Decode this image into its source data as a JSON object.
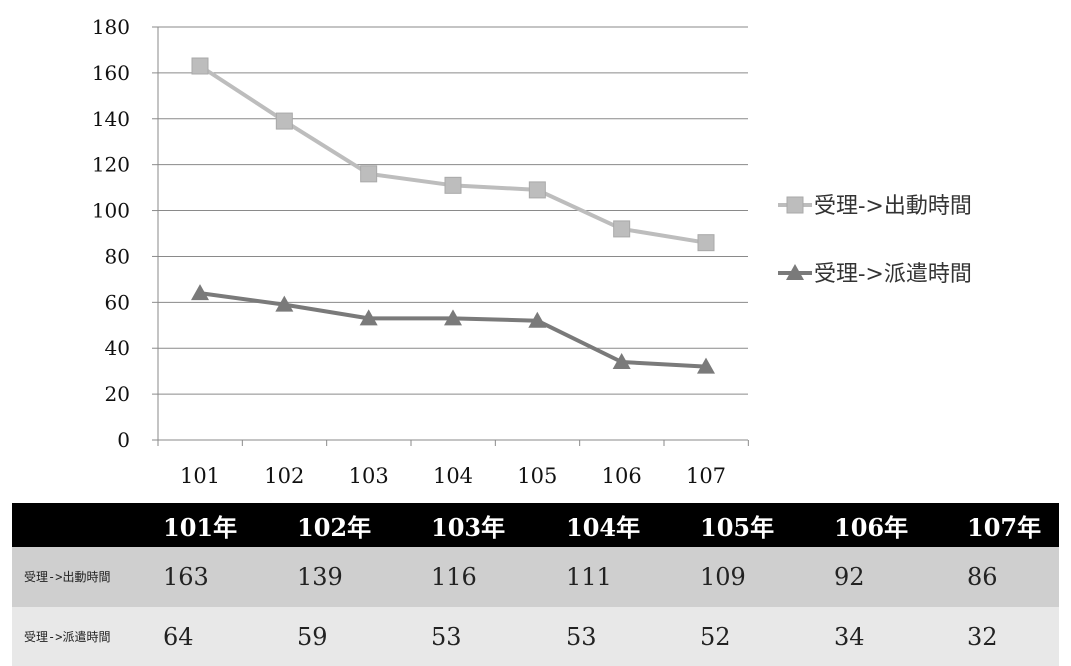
{
  "chart_data": {
    "type": "line",
    "categories": [
      "101",
      "102",
      "103",
      "104",
      "105",
      "106",
      "107"
    ],
    "series": [
      {
        "name": "受理->出動時間",
        "values": [
          163,
          139,
          116,
          111,
          109,
          92,
          86
        ],
        "color": "#bdbdbd",
        "marker": "square"
      },
      {
        "name": "受理->派遣時間",
        "values": [
          64,
          59,
          53,
          53,
          52,
          34,
          32
        ],
        "color": "#7a7a7a",
        "marker": "triangle"
      }
    ],
    "ylim": [
      0,
      180
    ],
    "yticks": [
      "0",
      "20",
      "40",
      "60",
      "80",
      "100",
      "120",
      "140",
      "160",
      "180"
    ],
    "grid": true,
    "legend_position": "right"
  },
  "table": {
    "header": [
      "",
      "101年",
      "102年",
      "103年",
      "104年",
      "105年",
      "106年",
      "107年"
    ],
    "rows": [
      {
        "label": "受理->出動時間",
        "values": [
          "163",
          "139",
          "116",
          "111",
          "109",
          "92",
          "86"
        ]
      },
      {
        "label": "受理->派遣時間",
        "values": [
          "64",
          "59",
          "53",
          "53",
          "52",
          "34",
          "32"
        ]
      }
    ]
  }
}
